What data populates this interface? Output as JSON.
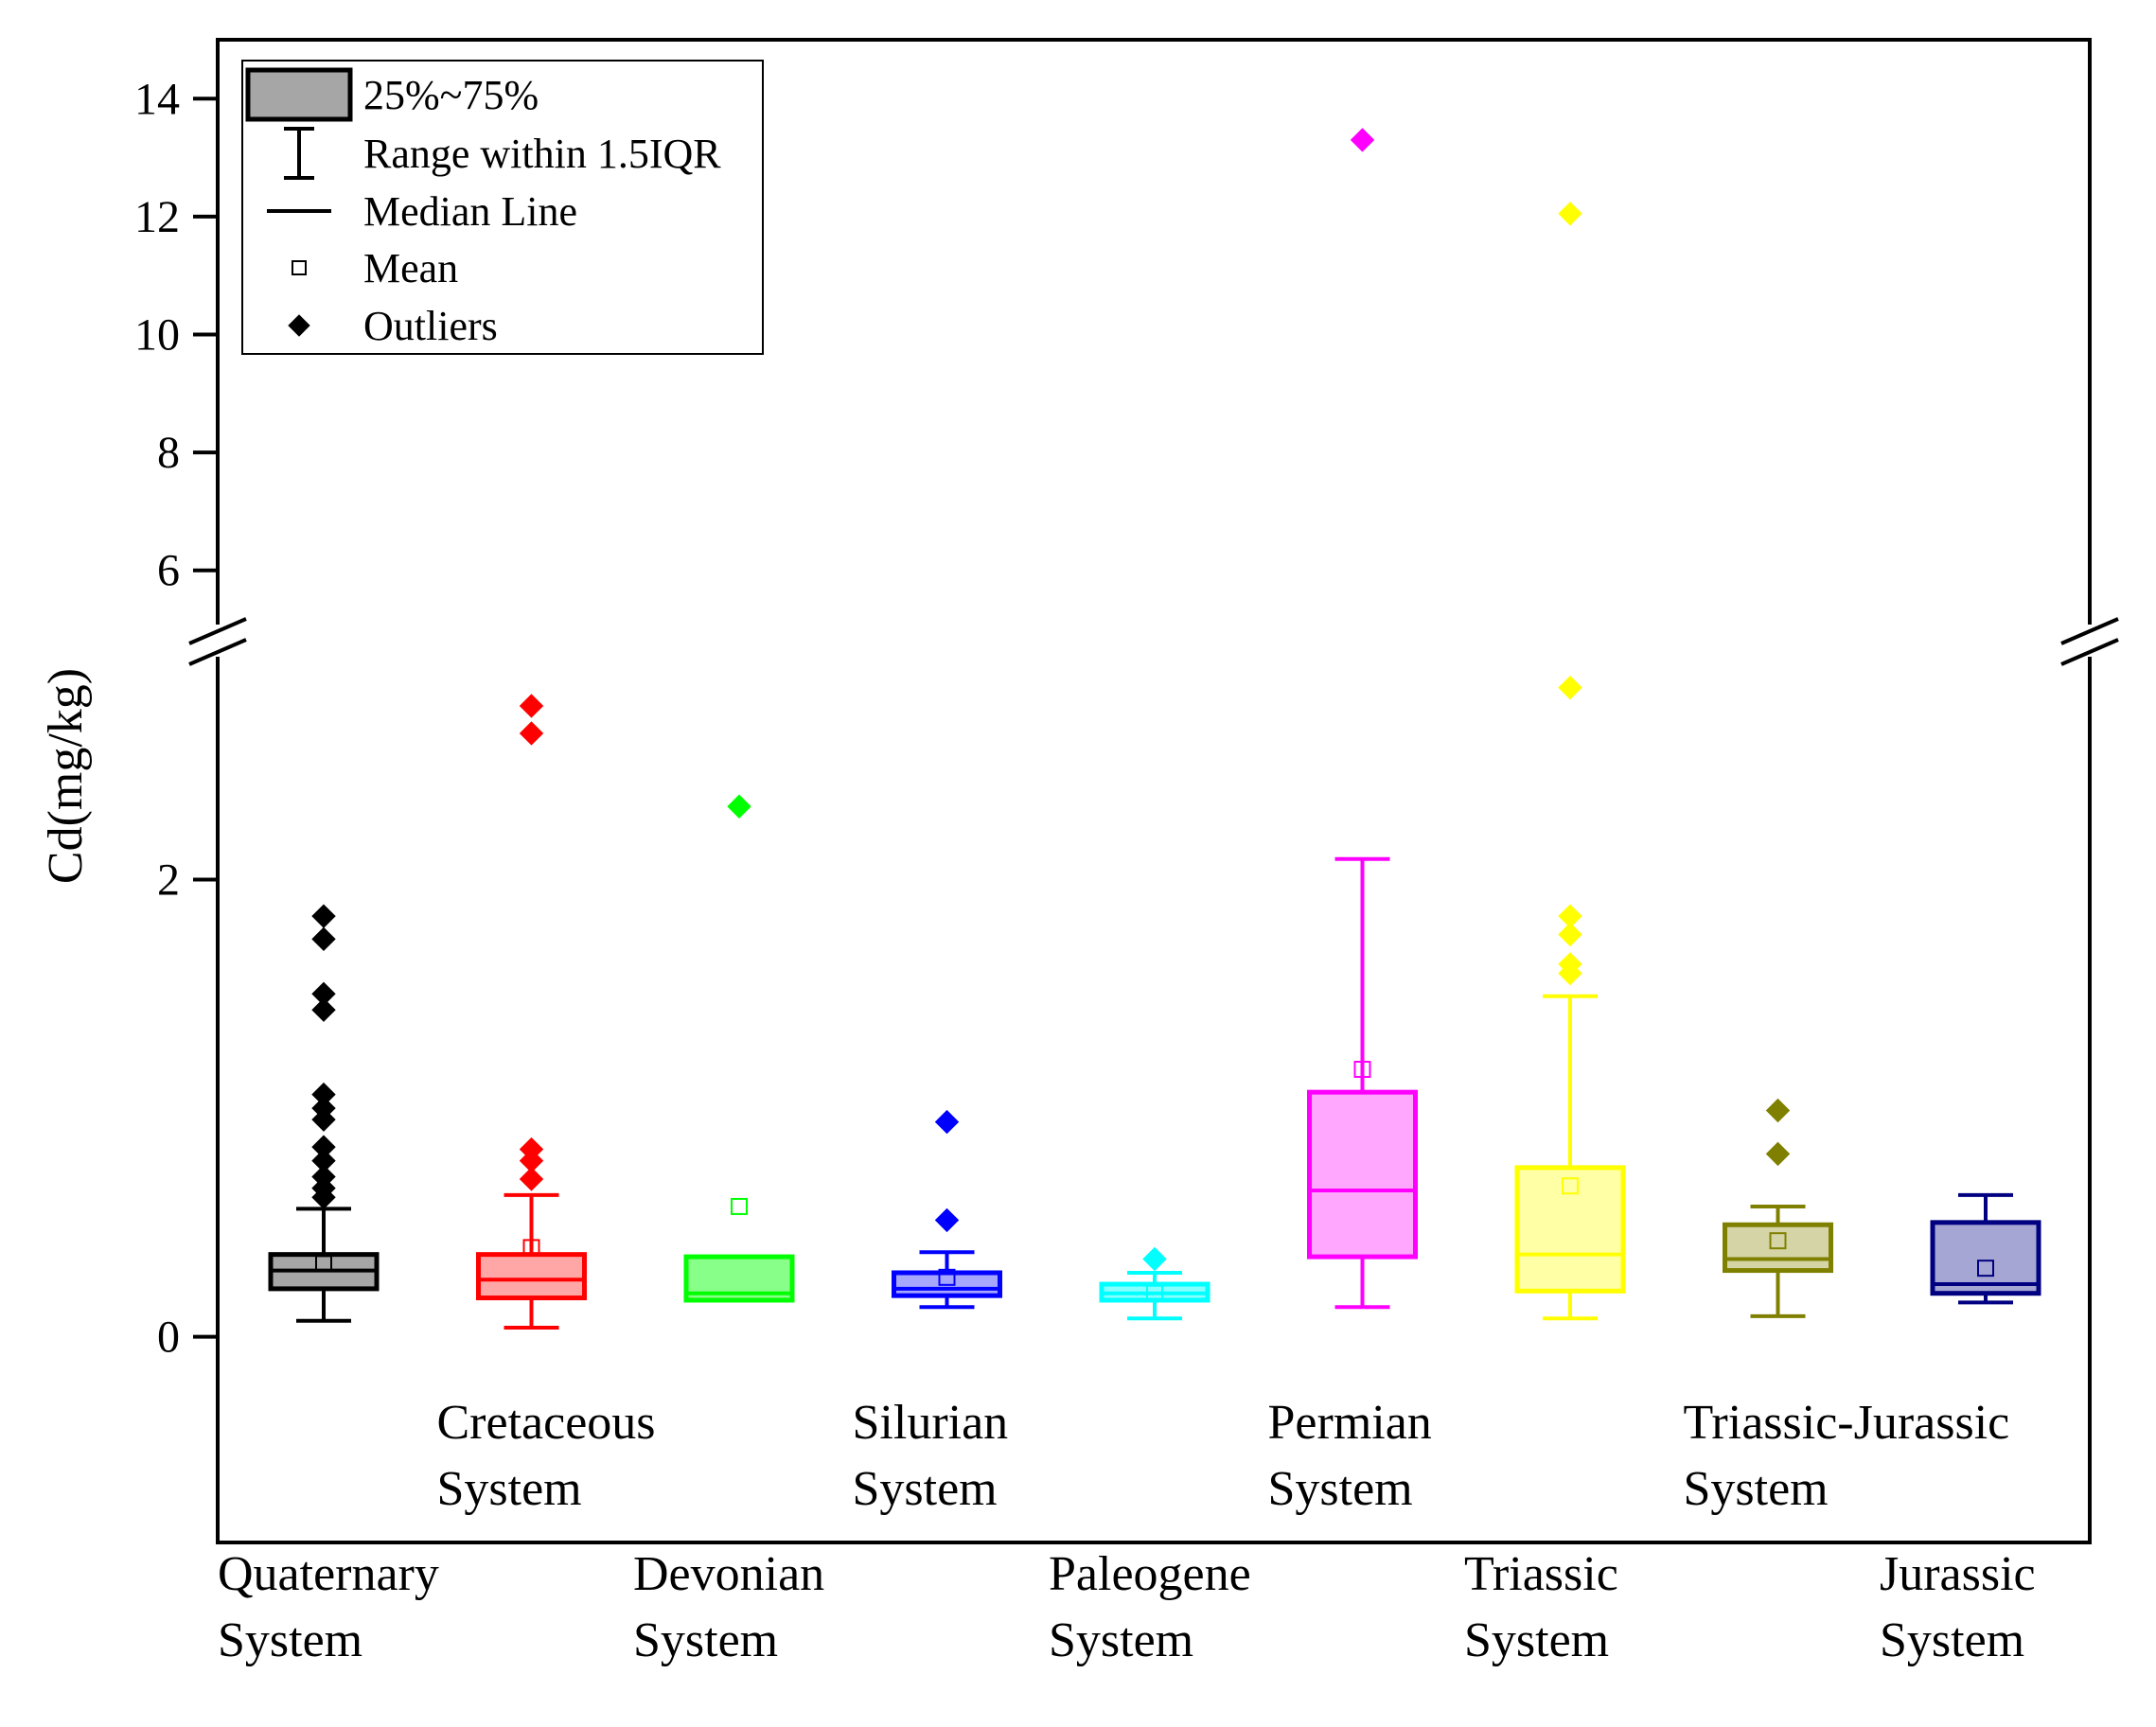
{
  "chart_data": {
    "type": "box",
    "title": "",
    "xlabel": "",
    "ylabel": "Cd(mg/kg)",
    "axis_break": {
      "lower_segment": [
        -0.9,
        3.0
      ],
      "upper_segment": [
        5.0,
        15.0
      ]
    },
    "y_ticks_lower": [
      "0",
      "2"
    ],
    "y_ticks_upper": [
      "6",
      "8",
      "10",
      "12",
      "14"
    ],
    "legend": {
      "position": "top-left",
      "entries": [
        "25%~75%",
        "Range within 1.5IQR",
        "Median Line",
        "Mean",
        "Outliers"
      ]
    },
    "series": [
      {
        "name": "Quaternary System",
        "label_lines": [
          "Quaternary",
          "System"
        ],
        "color": "#000000",
        "fill": "#a6a6a6",
        "whisker_low": 0.07,
        "q1": 0.21,
        "median": 0.29,
        "q3": 0.36,
        "whisker_high": 0.56,
        "mean": 0.32,
        "outliers": [
          1.84,
          1.74,
          1.5,
          1.43,
          1.06,
          1.0,
          0.95,
          0.83,
          0.77,
          0.7,
          0.65,
          0.61
        ]
      },
      {
        "name": "Cretaceous System",
        "label_lines": [
          "Cretaceous",
          "System"
        ],
        "color": "#ff0000",
        "fill": "#ffa6a6",
        "whisker_low": 0.04,
        "q1": 0.17,
        "median": 0.25,
        "q3": 0.36,
        "whisker_high": 0.62,
        "mean": 0.39,
        "outliers": [
          2.76,
          2.64,
          0.82,
          0.77,
          0.69
        ]
      },
      {
        "name": "Devonian System",
        "label_lines": [
          "Devonian",
          "System"
        ],
        "color": "#00ff00",
        "fill": "#88ff88",
        "whisker_low": 0.16,
        "q1": 0.16,
        "median": 0.19,
        "q3": 0.35,
        "whisker_high": 0.35,
        "mean": 0.57,
        "outliers": [
          2.32
        ]
      },
      {
        "name": "Silurian System",
        "label_lines": [
          "Silurian",
          "System"
        ],
        "color": "#0000ff",
        "fill": "#a6a6ff",
        "whisker_low": 0.13,
        "q1": 0.18,
        "median": 0.21,
        "q3": 0.28,
        "whisker_high": 0.37,
        "mean": 0.26,
        "outliers": [
          0.94,
          0.51
        ]
      },
      {
        "name": "Paleogene System",
        "label_lines": [
          "Paleogene",
          "System"
        ],
        "color": "#00ffff",
        "fill": "#88ffff",
        "whisker_low": 0.08,
        "q1": 0.16,
        "median": 0.19,
        "q3": 0.23,
        "whisker_high": 0.28,
        "mean": 0.19,
        "outliers": [
          0.34
        ]
      },
      {
        "name": "Permian System",
        "label_lines": [
          "Permian",
          "System"
        ],
        "color": "#ff00ff",
        "fill": "#ffa6ff",
        "whisker_low": 0.13,
        "q1": 0.35,
        "median": 0.64,
        "q3": 1.07,
        "whisker_high": 2.09,
        "mean": 1.17,
        "outliers": [
          13.3
        ]
      },
      {
        "name": "Triassic System",
        "label_lines": [
          "Triassic",
          "System"
        ],
        "color": "#ffff00",
        "fill": "#ffffa6",
        "whisker_low": 0.08,
        "q1": 0.2,
        "median": 0.36,
        "q3": 0.74,
        "whisker_high": 1.49,
        "mean": 0.66,
        "outliers": [
          12.05,
          2.84,
          1.84,
          1.76,
          1.63,
          1.59
        ]
      },
      {
        "name": "Triassic-Jurassic System",
        "label_lines": [
          "Triassic-Jurassic",
          "System"
        ],
        "color": "#808000",
        "fill": "#d4d4a6",
        "whisker_low": 0.09,
        "q1": 0.29,
        "median": 0.34,
        "q3": 0.49,
        "whisker_high": 0.57,
        "mean": 0.42,
        "outliers": [
          0.99,
          0.8
        ]
      },
      {
        "name": "Jurassic System",
        "label_lines": [
          "Jurassic",
          "System"
        ],
        "color": "#000080",
        "fill": "#a6a6d4",
        "whisker_low": 0.15,
        "q1": 0.19,
        "median": 0.23,
        "q3": 0.5,
        "whisker_high": 0.62,
        "mean": 0.3,
        "outliers": []
      }
    ]
  }
}
